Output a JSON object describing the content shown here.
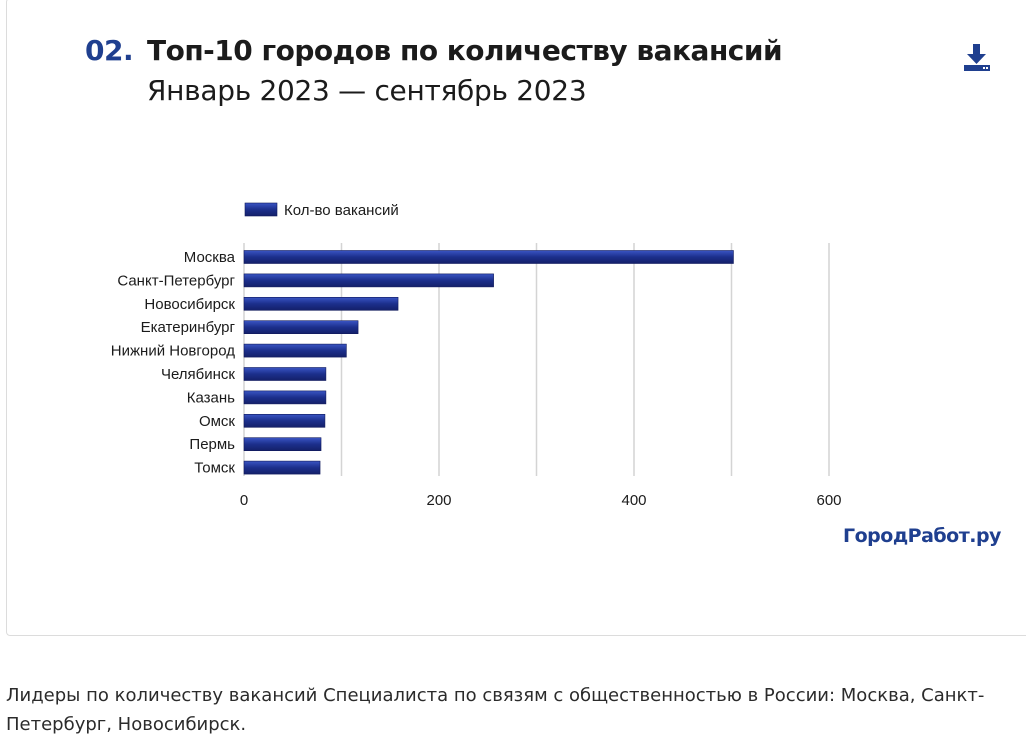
{
  "header": {
    "number": "02.",
    "title": "Топ-10 городов по количеству вакансий",
    "subtitle": "Январь 2023 — сентябрь 2023"
  },
  "icons": {
    "download": "download-icon"
  },
  "colors": {
    "accent": "#1f3f8f",
    "bar": "#1c2f8c",
    "bar_light": "#3a55c4"
  },
  "brand": "ГородРабот.ру",
  "caption": "Лидеры по количеству вакансий Специалиста по связям с общественностью в России: Москва, Санкт-Петербург, Новосибирск.",
  "chart_data": {
    "type": "bar",
    "orientation": "horizontal",
    "categories": [
      "Москва",
      "Санкт-Петербург",
      "Новосибирск",
      "Екатеринбург",
      "Нижний Новгород",
      "Челябинск",
      "Казань",
      "Омск",
      "Пермь",
      "Томск"
    ],
    "series": [
      {
        "name": "Кол-во вакансий",
        "values": [
          502,
          256,
          158,
          117,
          105,
          84,
          84,
          83,
          79,
          78
        ]
      }
    ],
    "xlim": [
      0,
      600
    ],
    "xticks": [
      0,
      200,
      400,
      600
    ],
    "grid": true,
    "legend_position": "top-left"
  }
}
